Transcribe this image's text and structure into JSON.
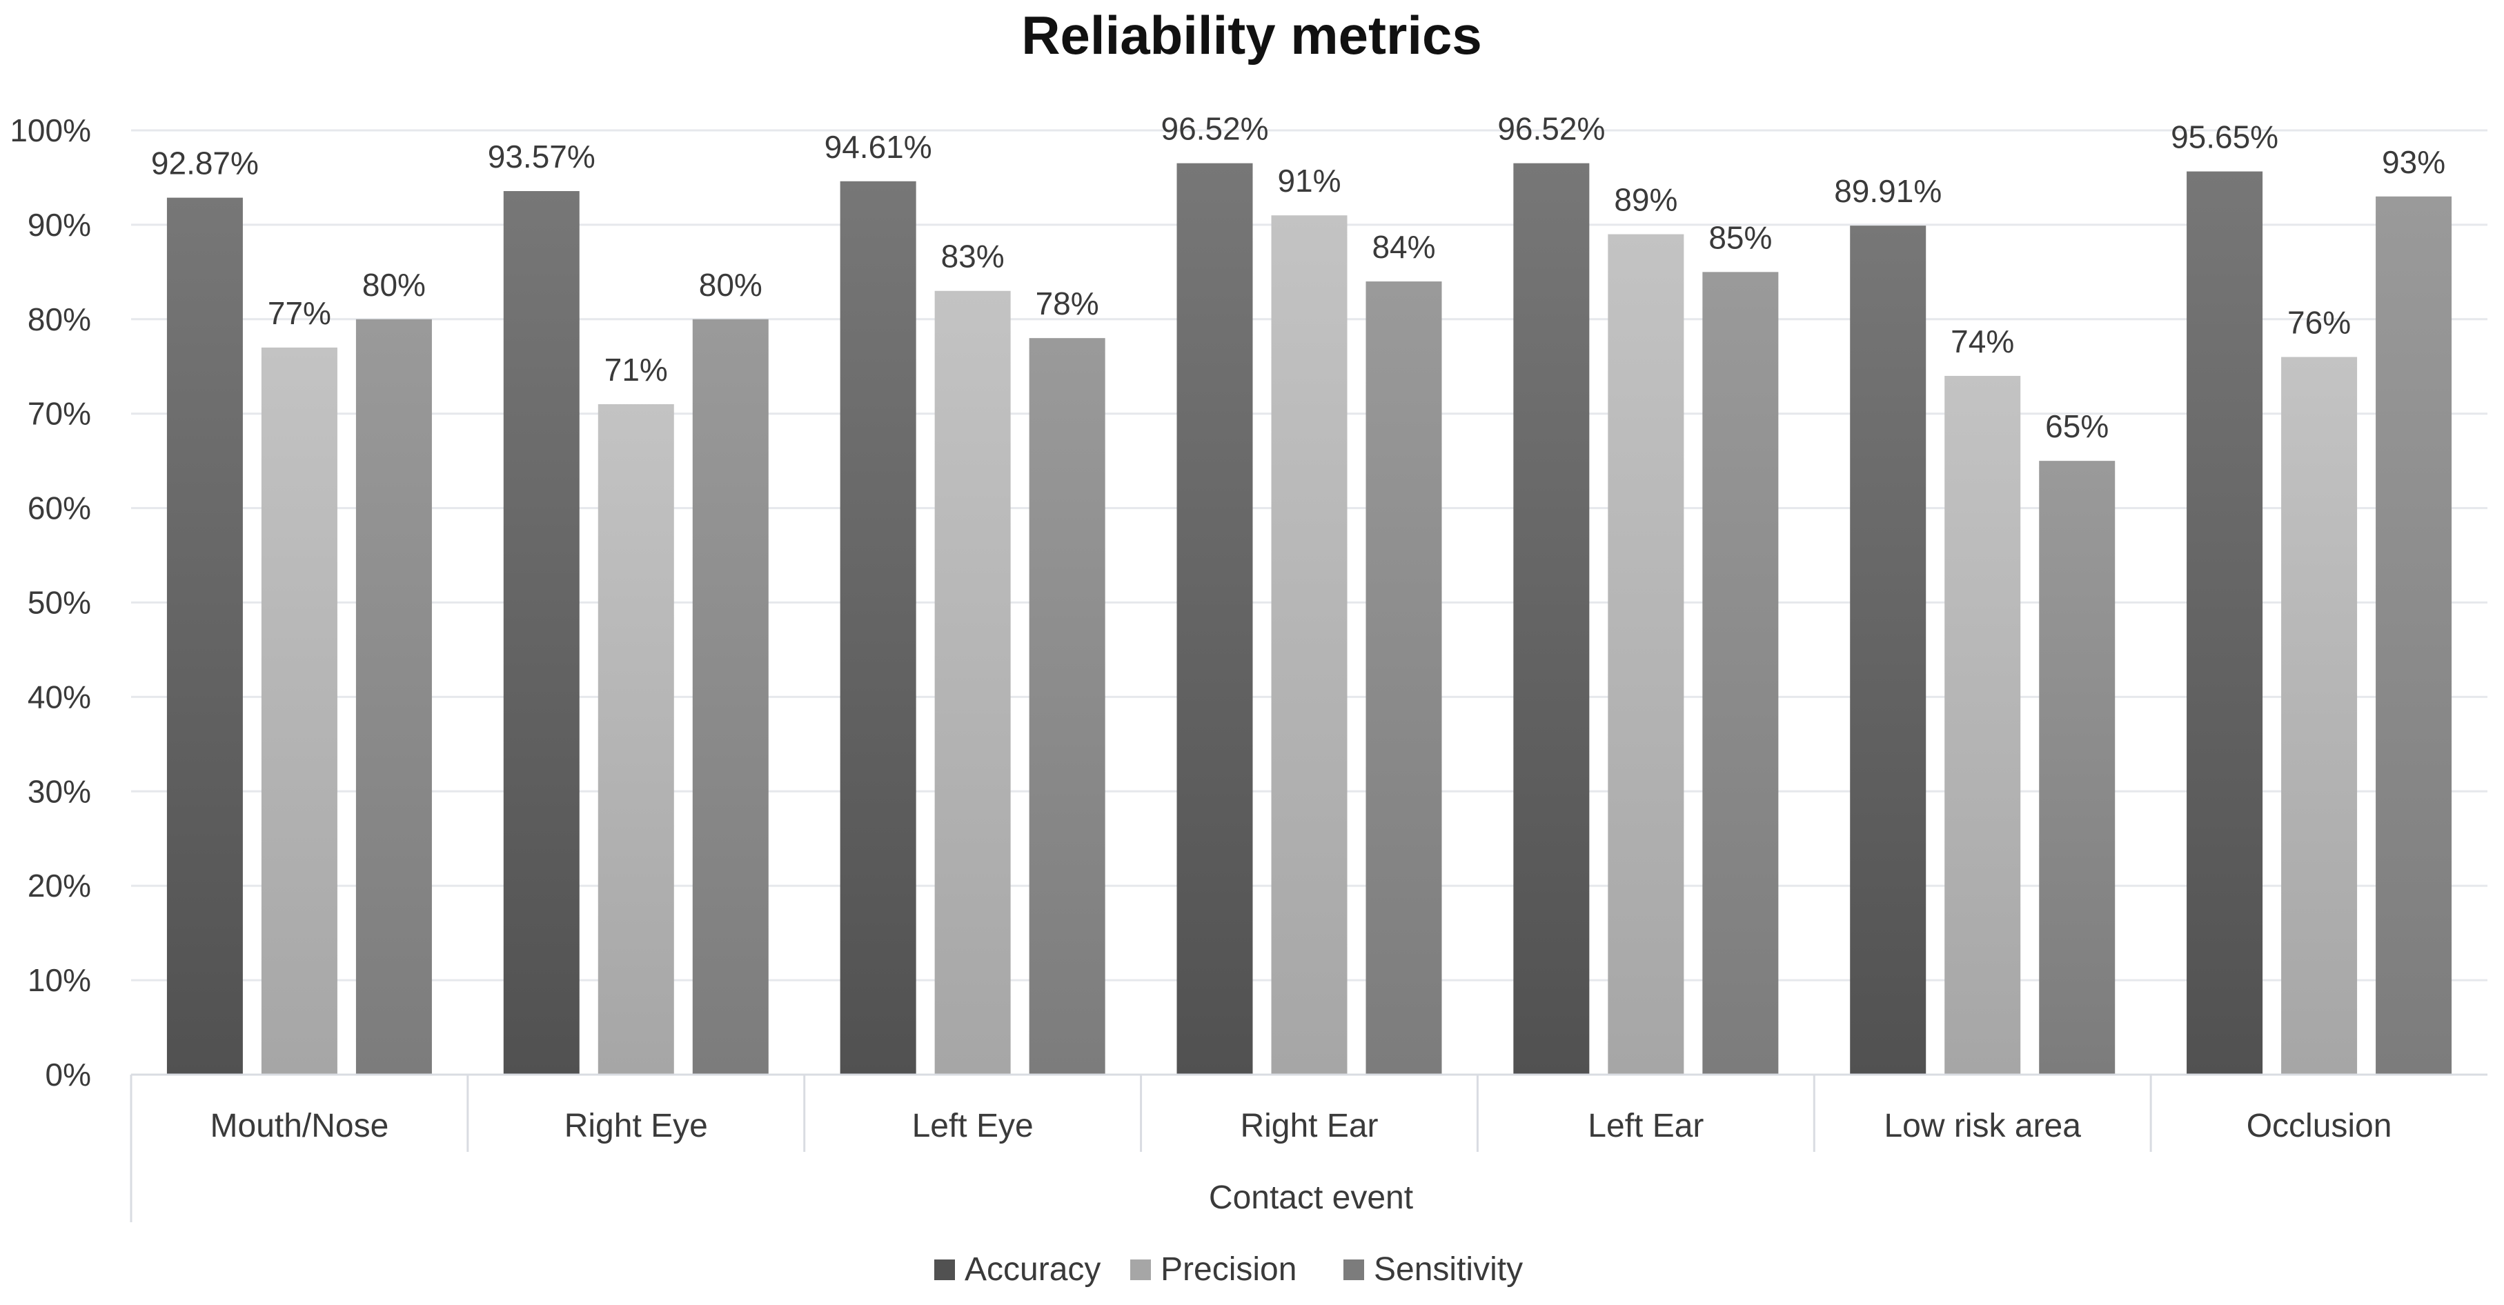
{
  "chart_data": {
    "type": "bar",
    "title": "Reliability metrics",
    "xlabel": "Contact event",
    "ylabel": "",
    "ylim": [
      0,
      100
    ],
    "yticks": [
      "0%",
      "10%",
      "20%",
      "30%",
      "40%",
      "50%",
      "60%",
      "70%",
      "80%",
      "90%",
      "100%"
    ],
    "categories": [
      "Mouth/Nose",
      "Right Eye",
      "Left Eye",
      "Right Ear",
      "Left Ear",
      "Low risk area",
      "Occlusion"
    ],
    "series": [
      {
        "name": "Accuracy",
        "color_top": "#777777",
        "color_bottom": "#515151",
        "values": [
          92.87,
          93.57,
          94.61,
          96.52,
          96.52,
          89.91,
          95.65
        ],
        "labels": [
          "92.87%",
          "93.57%",
          "94.61%",
          "96.52%",
          "96.52%",
          "89.91%",
          "95.65%"
        ]
      },
      {
        "name": "Precision",
        "color_top": "#c3c3c3",
        "color_bottom": "#a6a6a6",
        "values": [
          77,
          71,
          83,
          91,
          89,
          74,
          76
        ],
        "labels": [
          "77%",
          "71%",
          "83%",
          "91%",
          "89%",
          "74%",
          "76%"
        ]
      },
      {
        "name": "Sensitivity",
        "color_top": "#9a9a9a",
        "color_bottom": "#7c7c7c",
        "values": [
          80,
          80,
          78,
          84,
          85,
          65,
          93
        ],
        "labels": [
          "80%",
          "80%",
          "78%",
          "84%",
          "85%",
          "65%",
          "93%"
        ]
      }
    ],
    "legend_position": "bottom-center",
    "grid": true
  }
}
